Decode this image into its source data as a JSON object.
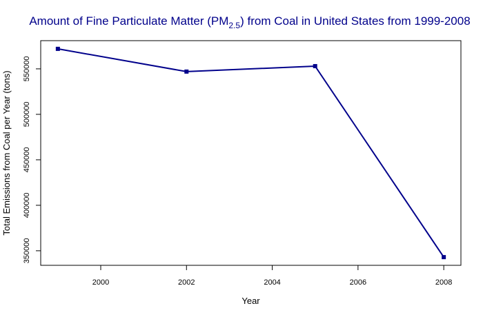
{
  "chart_data": {
    "type": "line",
    "title": {
      "prefix": "Amount of Fine Particulate Matter (PM",
      "subscript": "2.5",
      "suffix": ") from Coal in United States from 1999-2008"
    },
    "xlabel": "Year",
    "ylabel": "Total Emissions from Coal per Year (tons)",
    "x": [
      1999,
      2002,
      2005,
      2008
    ],
    "series": [
      {
        "values": [
          572000,
          547000,
          553000,
          343000
        ]
      }
    ],
    "xlim": [
      1998.6,
      2008.4
    ],
    "ylim": [
      334000,
      581000
    ],
    "xticks": [
      2000,
      2002,
      2004,
      2006,
      2008
    ],
    "xtick_labels": [
      "2000",
      "2002",
      "2004",
      "2006",
      "2008"
    ],
    "yticks": [
      350000,
      400000,
      450000,
      500000,
      550000
    ],
    "ytick_labels": [
      "350000",
      "400000",
      "450000",
      "500000",
      "550000"
    ],
    "grid": false,
    "colors": {
      "line": "#00008B",
      "title": "#00008B",
      "axis": "#000000"
    }
  }
}
